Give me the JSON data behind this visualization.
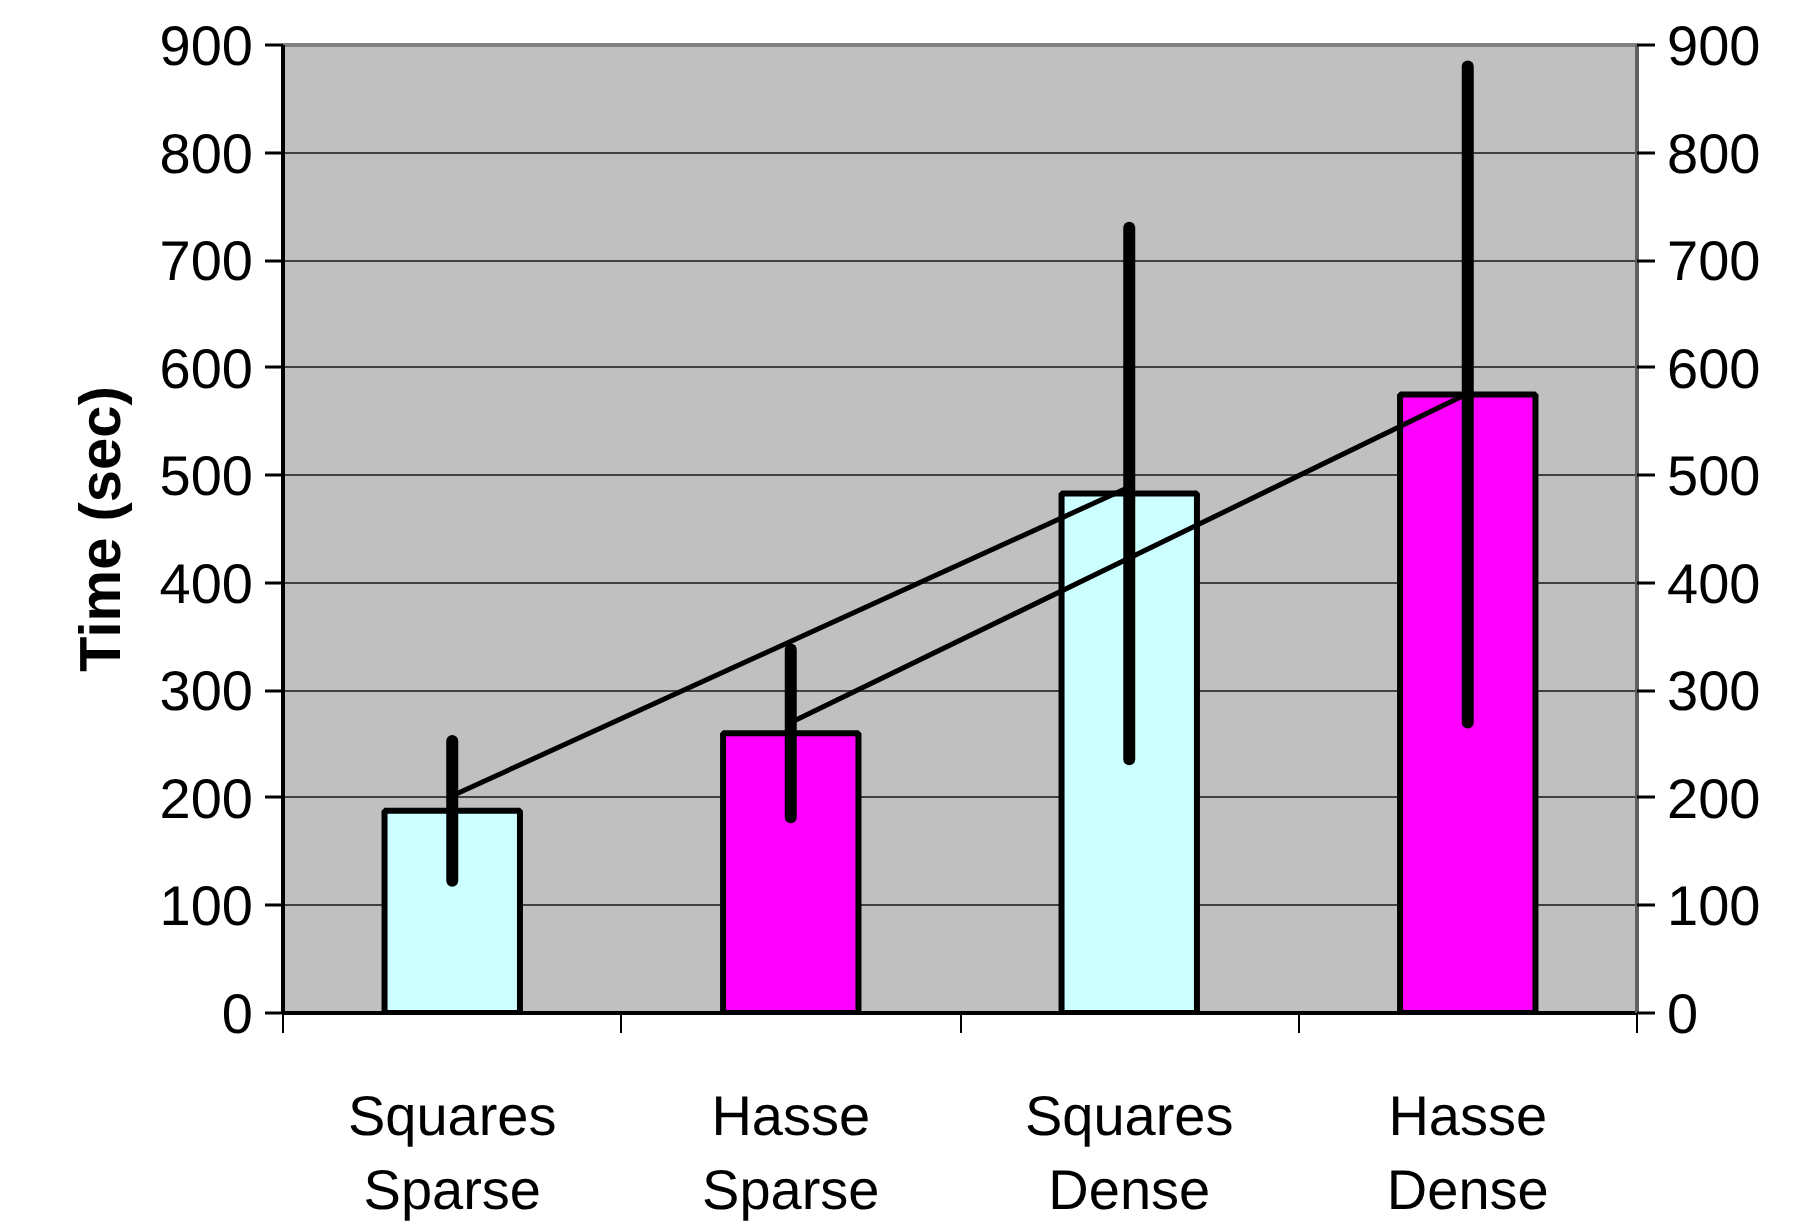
{
  "chart_data": {
    "type": "bar",
    "categories": [
      "Squares Sparse",
      "Hasse Sparse",
      "Squares Dense",
      "Hasse Dense"
    ],
    "ylabel": "Time (sec)",
    "series": [
      {
        "values": [
          188,
          260,
          483,
          575
        ],
        "colors": [
          "#ccffff",
          "#ff00ff",
          "#ccffff",
          "#ff00ff"
        ],
        "errors": [
          65,
          78,
          247,
          305
        ]
      },
      {
        "type": "line",
        "x": [
          "Squares Sparse",
          "Squares Dense"
        ],
        "values": [
          202,
          489
        ],
        "color": "#000000"
      },
      {
        "type": "line",
        "x": [
          "Hasse Sparse",
          "Hasse Dense"
        ],
        "values": [
          270,
          576
        ],
        "color": "#000000"
      }
    ],
    "ylim": [
      0,
      900
    ],
    "yticks": [
      0,
      100,
      200,
      300,
      400,
      500,
      600,
      700,
      800,
      900
    ],
    "y2lim": [
      0,
      900
    ],
    "y2ticks": [
      0,
      100,
      200,
      300,
      400,
      500,
      600,
      700,
      800,
      900
    ],
    "grid": "y"
  }
}
